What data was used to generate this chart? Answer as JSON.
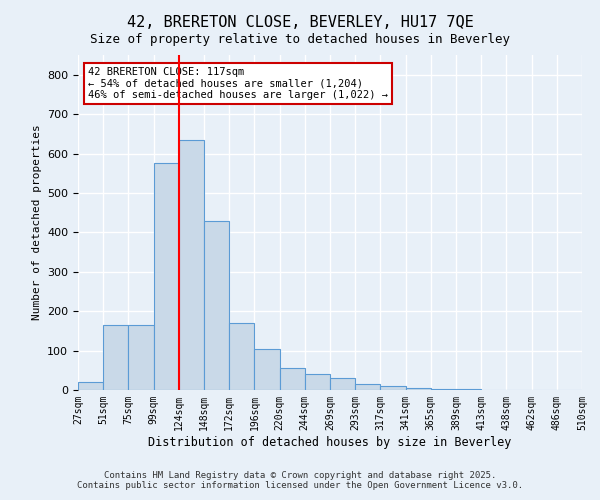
{
  "title1": "42, BRERETON CLOSE, BEVERLEY, HU17 7QE",
  "title2": "Size of property relative to detached houses in Beverley",
  "xlabel": "Distribution of detached houses by size in Beverley",
  "ylabel": "Number of detached properties",
  "bar_color": "#c9d9e8",
  "bar_edge_color": "#5b9bd5",
  "background_color": "#e8f0f8",
  "grid_color": "#ffffff",
  "bins": [
    "27sqm",
    "51sqm",
    "75sqm",
    "99sqm",
    "124sqm",
    "148sqm",
    "172sqm",
    "196sqm",
    "220sqm",
    "244sqm",
    "269sqm",
    "293sqm",
    "317sqm",
    "341sqm",
    "365sqm",
    "389sqm",
    "413sqm",
    "438sqm",
    "462sqm",
    "486sqm",
    "510sqm"
  ],
  "values": [
    20,
    165,
    165,
    575,
    635,
    430,
    170,
    105,
    55,
    40,
    30,
    15,
    10,
    5,
    3,
    2,
    1,
    1,
    1,
    0
  ],
  "annotation_text": "42 BRERETON CLOSE: 117sqm\n← 54% of detached houses are smaller (1,204)\n46% of semi-detached houses are larger (1,022) →",
  "annotation_box_color": "#ffffff",
  "annotation_box_edge": "#cc0000",
  "footer1": "Contains HM Land Registry data © Crown copyright and database right 2025.",
  "footer2": "Contains public sector information licensed under the Open Government Licence v3.0.",
  "ylim": [
    0,
    850
  ],
  "yticks": [
    0,
    100,
    200,
    300,
    400,
    500,
    600,
    700,
    800
  ]
}
